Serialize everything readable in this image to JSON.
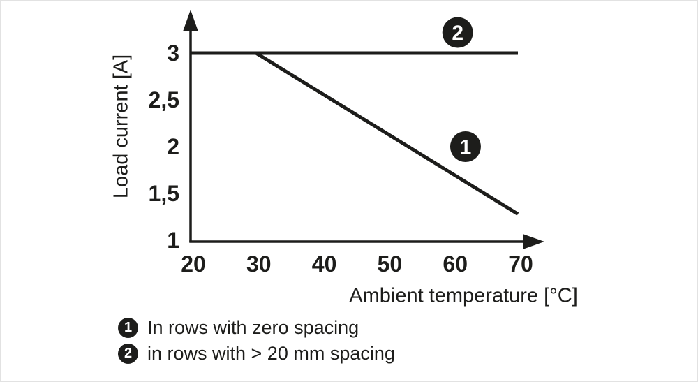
{
  "figure": {
    "background": "#ffffff",
    "ink": "#1d1d1b"
  },
  "chart_data": {
    "type": "line",
    "title": "",
    "xlabel": "Ambient temperature [°C]",
    "ylabel": "Load current [A]",
    "xlim": [
      20,
      74
    ],
    "ylim": [
      1,
      3.45
    ],
    "x_ticks": [
      20,
      30,
      40,
      50,
      60,
      70
    ],
    "x_tick_labels": [
      "20",
      "30",
      "40",
      "50",
      "60",
      "70"
    ],
    "y_ticks": [
      1,
      1.5,
      2,
      2.5,
      3
    ],
    "y_tick_labels": [
      "1",
      "1,5",
      "2",
      "2,5",
      "3"
    ],
    "grid": false,
    "series": [
      {
        "name": "2",
        "label": "in rows with > 20 mm spacing",
        "points": [
          [
            20,
            3
          ],
          [
            70,
            3
          ]
        ],
        "marker": {
          "x": 60.8,
          "y": 3.22,
          "label": "2"
        }
      },
      {
        "name": "1",
        "label": "In rows with zero spacing",
        "points": [
          [
            30,
            3
          ],
          [
            70,
            1.28
          ]
        ],
        "marker": {
          "x": 62,
          "y": 2.0,
          "label": "1"
        }
      }
    ],
    "legend": [
      {
        "symbol": "1",
        "text": "In rows with zero spacing"
      },
      {
        "symbol": "2",
        "text": "in rows with > 20 mm spacing"
      }
    ],
    "legend_position": "bottom-left"
  }
}
